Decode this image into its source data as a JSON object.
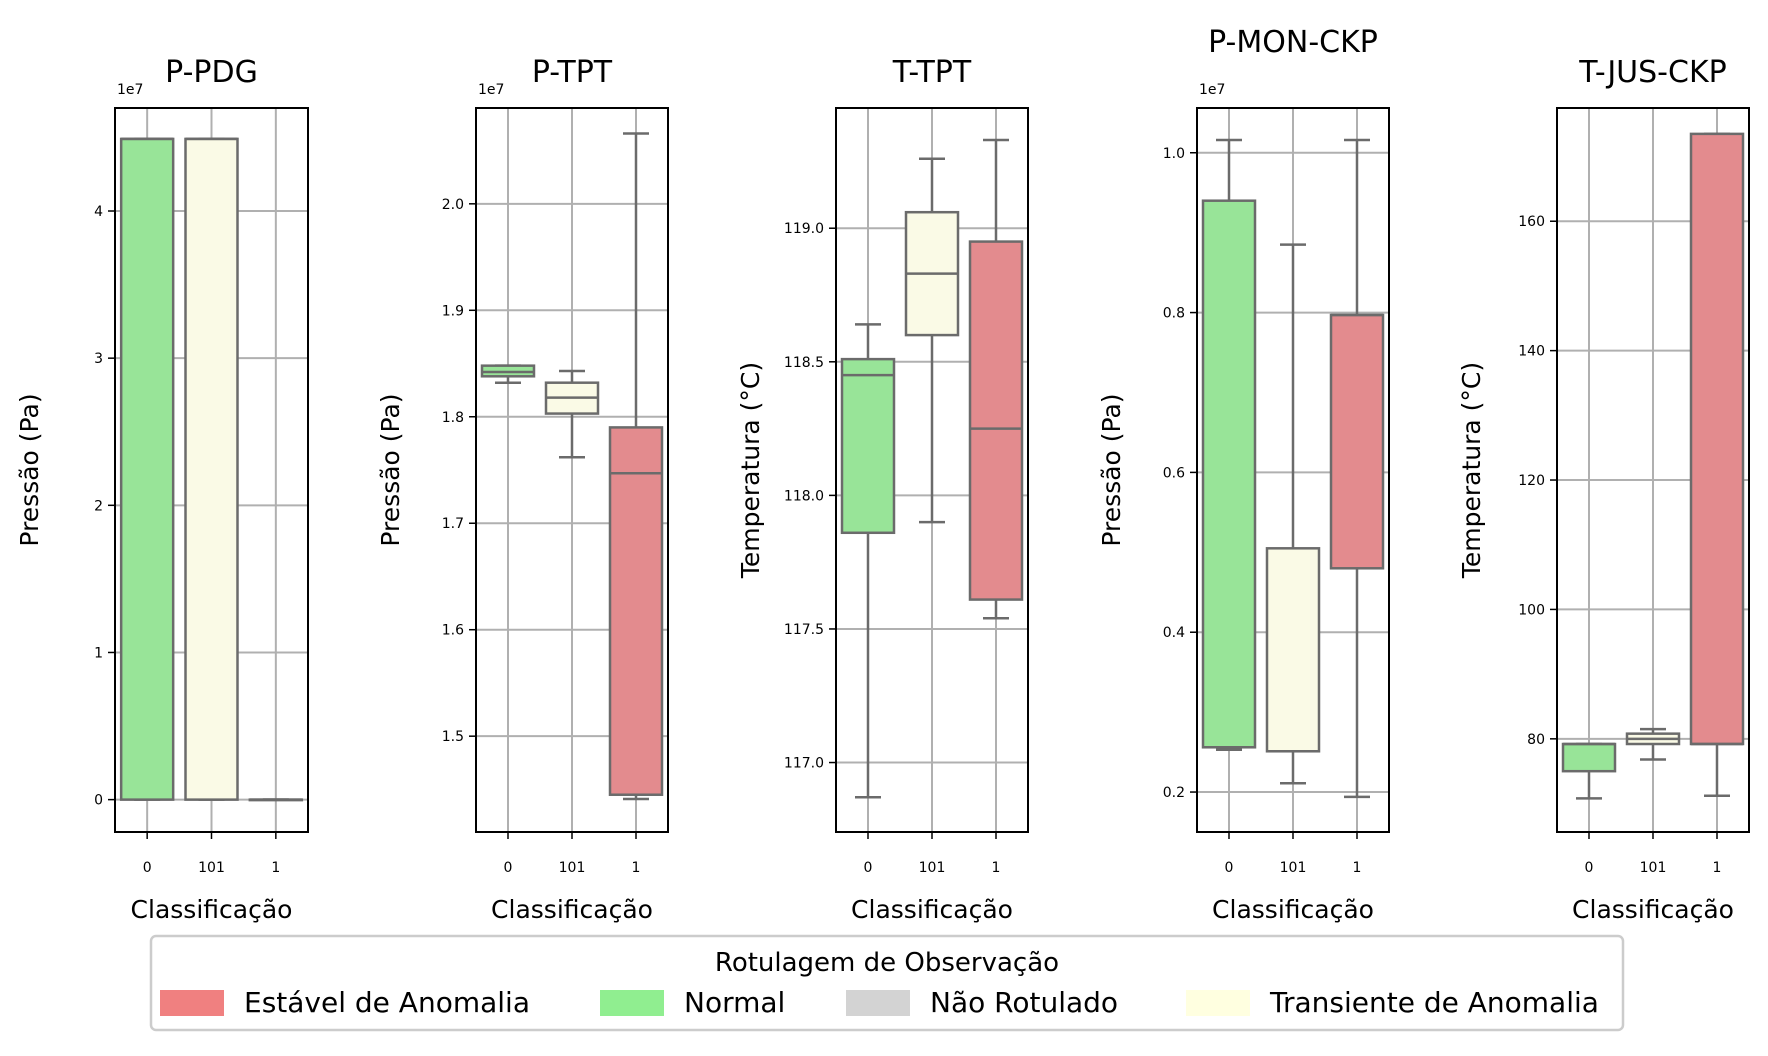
{
  "colors": {
    "normal": "#98E498",
    "transient": "#FAFAE6",
    "stable": "#E38B8E",
    "unlabeled": "#D3D3D3",
    "legend_stable": "#F08080",
    "legend_normal": "#90EE90",
    "legend_unlabeled": "#D3D3D3",
    "legend_transient": "#FFFFE0",
    "box_edge": "#6b6b6b"
  },
  "chart_data": [
    {
      "type": "box",
      "title": "P-PDG",
      "xlabel": "Classificação",
      "ylabel": "Pressão (Pa)",
      "multiplier": "1e7",
      "ylim": [
        -0.22,
        4.7
      ],
      "yticks": [
        0,
        1,
        2,
        3,
        4
      ],
      "yticklabels": [
        "0",
        "1",
        "2",
        "3",
        "4"
      ],
      "categories": [
        "0",
        "101",
        "1"
      ],
      "boxes": [
        {
          "category": "0",
          "label": "Normal",
          "whislo": 0.0,
          "q1": 0.0,
          "med": 4.49,
          "q3": 4.49,
          "whishi": 4.49
        },
        {
          "category": "101",
          "label": "Transiente de Anomalia",
          "whislo": 0.0,
          "q1": 0.0,
          "med": 4.49,
          "q3": 4.49,
          "whishi": 4.49
        },
        {
          "category": "1",
          "label": "Estável de Anomalia",
          "whislo": 0.0,
          "q1": 0.0,
          "med": 0.0,
          "q3": 0.0,
          "whishi": 0.0
        }
      ]
    },
    {
      "type": "box",
      "title": "P-TPT",
      "xlabel": "Classificação",
      "ylabel": "Pressão (Pa)",
      "multiplier": "1e7",
      "ylim": [
        1.41,
        2.09
      ],
      "yticks": [
        1.5,
        1.6,
        1.7,
        1.8,
        1.9,
        2.0
      ],
      "yticklabels": [
        "1.5",
        "1.6",
        "1.7",
        "1.8",
        "1.9",
        "2.0"
      ],
      "categories": [
        "0",
        "101",
        "1"
      ],
      "boxes": [
        {
          "category": "0",
          "label": "Normal",
          "whislo": 1.832,
          "q1": 1.838,
          "med": 1.842,
          "q3": 1.848,
          "whishi": 1.848
        },
        {
          "category": "101",
          "label": "Transiente de Anomalia",
          "whislo": 1.762,
          "q1": 1.803,
          "med": 1.818,
          "q3": 1.832,
          "whishi": 1.843
        },
        {
          "category": "1",
          "label": "Estável de Anomalia",
          "whislo": 1.441,
          "q1": 1.445,
          "med": 1.747,
          "q3": 1.79,
          "whishi": 2.066
        }
      ]
    },
    {
      "type": "box",
      "title": "T-TPT",
      "xlabel": "Classificação",
      "ylabel": "Temperatura (°C)",
      "multiplier": "",
      "ylim": [
        116.74,
        119.45
      ],
      "yticks": [
        117.0,
        117.5,
        118.0,
        118.5,
        119.0
      ],
      "yticklabels": [
        "117.0",
        "117.5",
        "118.0",
        "118.5",
        "119.0"
      ],
      "categories": [
        "0",
        "101",
        "1"
      ],
      "boxes": [
        {
          "category": "0",
          "label": "Normal",
          "whislo": 116.87,
          "q1": 117.86,
          "med": 118.45,
          "q3": 118.51,
          "whishi": 118.64
        },
        {
          "category": "101",
          "label": "Transiente de Anomalia",
          "whislo": 117.9,
          "q1": 118.6,
          "med": 118.83,
          "q3": 119.06,
          "whishi": 119.26
        },
        {
          "category": "1",
          "label": "Estável de Anomalia",
          "whislo": 117.54,
          "q1": 117.61,
          "med": 118.25,
          "q3": 118.95,
          "whishi": 119.33
        }
      ]
    },
    {
      "type": "box",
      "title": "P-MON-CKP",
      "xlabel": "Classificação",
      "ylabel": "Pressão (Pa)",
      "multiplier": "1e7",
      "ylim": [
        0.15,
        1.056
      ],
      "yticks": [
        0.2,
        0.4,
        0.6,
        0.8,
        1.0
      ],
      "yticklabels": [
        "0.2",
        "0.4",
        "0.6",
        "0.8",
        "1.0"
      ],
      "categories": [
        "0",
        "101",
        "1"
      ],
      "boxes": [
        {
          "category": "0",
          "label": "Normal",
          "whislo": 0.253,
          "q1": 0.256,
          "med": 0.256,
          "q3": 0.94,
          "whishi": 1.016
        },
        {
          "category": "101",
          "label": "Transiente de Anomalia",
          "whislo": 0.211,
          "q1": 0.251,
          "med": 0.251,
          "q3": 0.505,
          "whishi": 0.885
        },
        {
          "category": "1",
          "label": "Estável de Anomalia",
          "whislo": 0.194,
          "q1": 0.48,
          "med": 0.797,
          "q3": 0.797,
          "whishi": 1.016
        }
      ]
    },
    {
      "type": "box",
      "title": "T-JUS-CKP",
      "xlabel": "Classificação",
      "ylabel": "Temperatura (°C)",
      "multiplier": "",
      "ylim": [
        65.6,
        177.5
      ],
      "yticks": [
        80,
        100,
        120,
        140,
        160
      ],
      "yticklabels": [
        "80",
        "100",
        "120",
        "140",
        "160"
      ],
      "categories": [
        "0",
        "101",
        "1"
      ],
      "boxes": [
        {
          "category": "0",
          "label": "Normal",
          "whislo": 70.8,
          "q1": 75.0,
          "med": 79.2,
          "q3": 79.2,
          "whishi": 79.2
        },
        {
          "category": "101",
          "label": "Transiente de Anomalia",
          "whislo": 76.8,
          "q1": 79.2,
          "med": 80.0,
          "q3": 80.8,
          "whishi": 81.5
        },
        {
          "category": "1",
          "label": "Estável de Anomalia",
          "whislo": 71.2,
          "q1": 79.2,
          "med": 79.2,
          "q3": 173.5,
          "whishi": 173.5
        }
      ]
    }
  ],
  "legend": {
    "title": "Rotulagem de Observação",
    "placement": "bottom-center",
    "items": [
      {
        "label": "Estável de Anomalia",
        "color": "#F08080"
      },
      {
        "label": "Normal",
        "color": "#90EE90"
      },
      {
        "label": "Não Rotulado",
        "color": "#D3D3D3"
      },
      {
        "label": "Transiente de Anomalia",
        "color": "#FFFFE0"
      }
    ]
  }
}
